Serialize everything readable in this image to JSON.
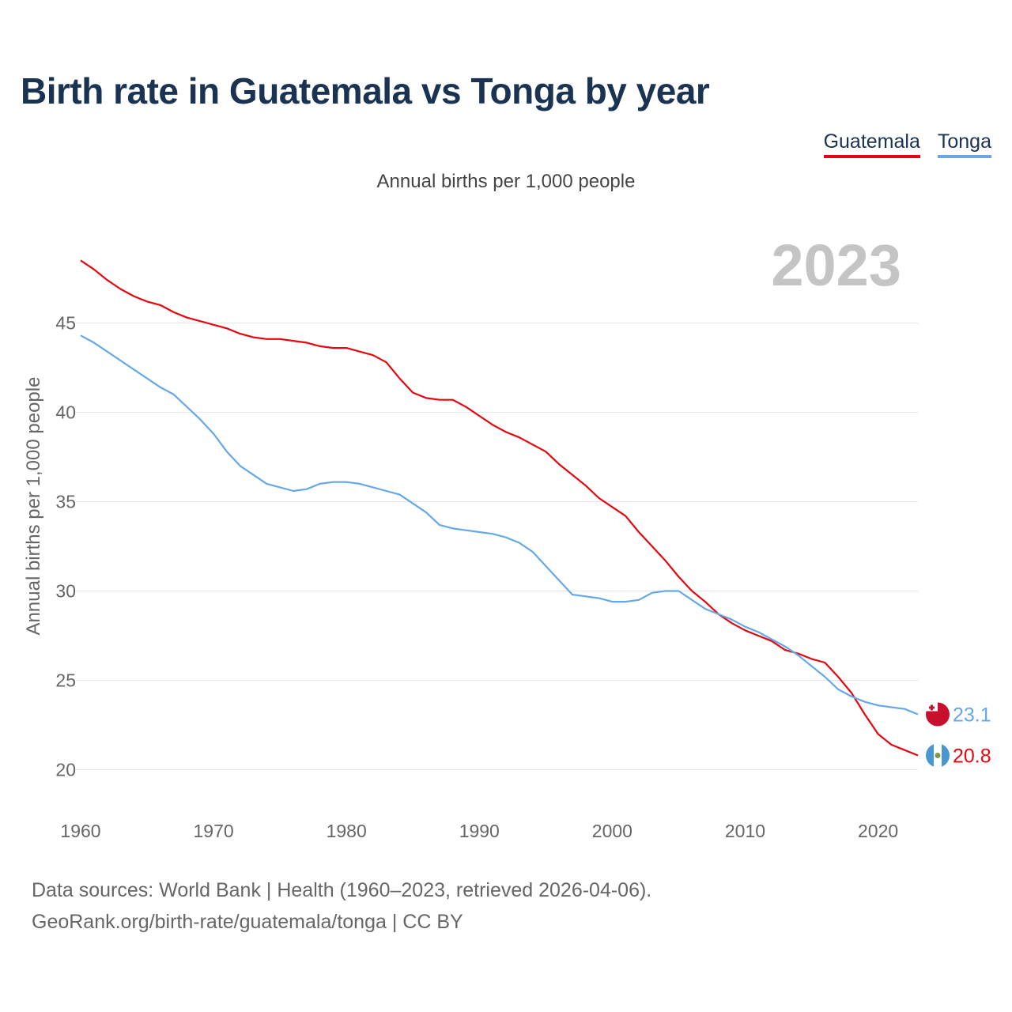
{
  "chart_data": {
    "type": "line",
    "title": "Birth rate in Guatemala vs Tonga by year",
    "subtitle": "Annual births per 1,000 people",
    "ylabel": "Annual births per 1,000 people",
    "xlabel": "",
    "current_year": "2023",
    "xlim": [
      1960,
      2023
    ],
    "ylim": [
      18.3,
      49.8
    ],
    "yticks": [
      20,
      25,
      30,
      35,
      40,
      45
    ],
    "ytick_labels": [
      "20",
      "25",
      "30",
      "35",
      "40",
      "45"
    ],
    "xticks": [
      1960,
      1970,
      1980,
      1990,
      2000,
      2010,
      2020
    ],
    "xtick_labels": [
      "1960",
      "1970",
      "1980",
      "1990",
      "2000",
      "2010",
      "2020"
    ],
    "legend_position": "top-right",
    "series": [
      {
        "name": "Guatemala",
        "color": "#e8060e",
        "end_label": "20.8",
        "flag_icon": "guatemala-flag-icon",
        "x": [
          1960,
          1961,
          1962,
          1963,
          1964,
          1965,
          1966,
          1967,
          1968,
          1969,
          1970,
          1971,
          1972,
          1973,
          1974,
          1975,
          1976,
          1977,
          1978,
          1979,
          1980,
          1981,
          1982,
          1983,
          1984,
          1985,
          1986,
          1987,
          1988,
          1989,
          1990,
          1991,
          1992,
          1993,
          1994,
          1995,
          1996,
          1997,
          1998,
          1999,
          2000,
          2001,
          2002,
          2003,
          2004,
          2005,
          2006,
          2007,
          2008,
          2009,
          2010,
          2011,
          2012,
          2013,
          2014,
          2015,
          2016,
          2017,
          2018,
          2019,
          2020,
          2021,
          2022,
          2023
        ],
        "values": [
          48.5,
          48.0,
          47.4,
          46.9,
          46.5,
          46.2,
          46.0,
          45.6,
          45.3,
          45.1,
          44.9,
          44.7,
          44.4,
          44.2,
          44.1,
          44.1,
          44.0,
          43.9,
          43.7,
          43.6,
          43.6,
          43.4,
          43.2,
          42.8,
          41.9,
          41.1,
          40.8,
          40.7,
          40.7,
          40.3,
          39.8,
          39.3,
          38.9,
          38.6,
          38.2,
          37.8,
          37.1,
          36.5,
          35.9,
          35.2,
          34.7,
          34.2,
          33.3,
          32.5,
          31.7,
          30.8,
          30.0,
          29.4,
          28.7,
          28.2,
          27.8,
          27.5,
          27.2,
          26.7,
          26.5,
          26.2,
          26.0,
          25.2,
          24.3,
          23.1,
          22.0,
          21.4,
          21.1,
          20.8
        ]
      },
      {
        "name": "Tonga",
        "color": "#66a8e6",
        "end_label": "23.1",
        "flag_icon": "tonga-flag-icon",
        "x": [
          1960,
          1961,
          1962,
          1963,
          1964,
          1965,
          1966,
          1967,
          1968,
          1969,
          1970,
          1971,
          1972,
          1973,
          1974,
          1975,
          1976,
          1977,
          1978,
          1979,
          1980,
          1981,
          1982,
          1983,
          1984,
          1985,
          1986,
          1987,
          1988,
          1989,
          1990,
          1991,
          1992,
          1993,
          1994,
          1995,
          1996,
          1997,
          1998,
          1999,
          2000,
          2001,
          2002,
          2003,
          2004,
          2005,
          2006,
          2007,
          2008,
          2009,
          2010,
          2011,
          2012,
          2013,
          2014,
          2015,
          2016,
          2017,
          2018,
          2019,
          2020,
          2021,
          2022,
          2023
        ],
        "values": [
          44.3,
          43.9,
          43.4,
          42.9,
          42.4,
          41.9,
          41.4,
          41.0,
          40.3,
          39.6,
          38.8,
          37.8,
          37.0,
          36.5,
          36.0,
          35.8,
          35.6,
          35.7,
          36.0,
          36.1,
          36.1,
          36.0,
          35.8,
          35.6,
          35.4,
          34.9,
          34.4,
          33.7,
          33.5,
          33.4,
          33.3,
          33.2,
          33.0,
          32.7,
          32.2,
          31.4,
          30.6,
          29.8,
          29.7,
          29.6,
          29.4,
          29.4,
          29.5,
          29.9,
          30.0,
          30.0,
          29.5,
          29.0,
          28.7,
          28.4,
          28.0,
          27.7,
          27.3,
          26.9,
          26.4,
          25.8,
          25.2,
          24.5,
          24.1,
          23.8,
          23.6,
          23.5,
          23.4,
          23.1
        ]
      }
    ]
  },
  "sources": {
    "line1": "Data sources: World Bank | Health (1960–2023, retrieved 2026-04-06).",
    "line2": "GeoRank.org/birth-rate/guatemala/tonga | CC BY"
  }
}
